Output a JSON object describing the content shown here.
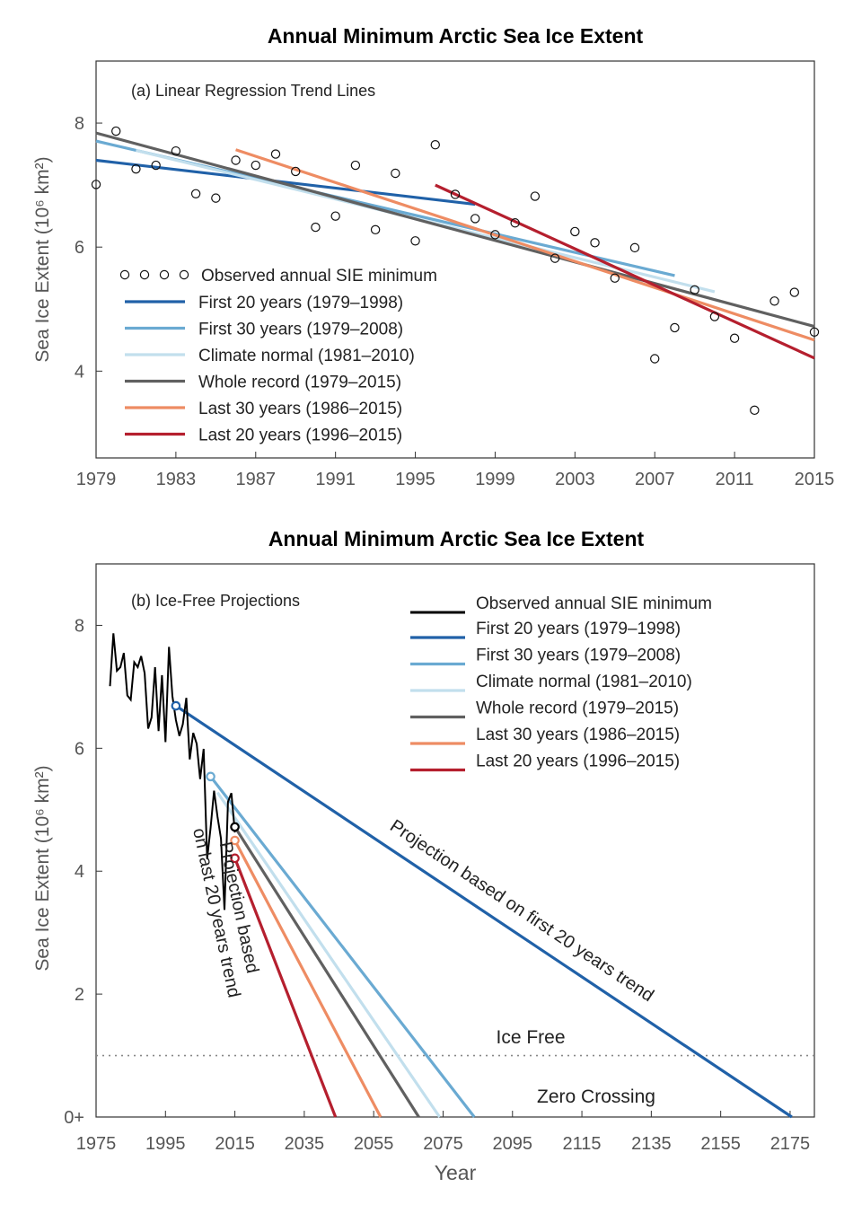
{
  "chart_data": [
    {
      "type": "scatter",
      "title": "Annual Minimum Arctic Sea Ice Extent",
      "subtitle": "(a) Linear Regression Trend Lines",
      "ylabel": "Sea Ice Extent  (10⁶ km²)",
      "xlabel": "",
      "xlim": [
        1979,
        2015
      ],
      "ylim": [
        2.6,
        9.0
      ],
      "xticks": [
        1979,
        1983,
        1987,
        1991,
        1995,
        1999,
        2003,
        2007,
        2011,
        2015
      ],
      "xtick_labels": [
        "1979",
        "1983",
        "1987",
        "1991",
        "1995",
        "1999",
        "2003",
        "2007",
        "2011",
        "2015"
      ],
      "yticks": [
        4,
        6,
        8
      ],
      "ytick_labels": [
        "4",
        "6",
        "8"
      ],
      "legend_position": "bottom-left",
      "observed": {
        "name": "Observed annual SIE minimum",
        "x": [
          1979,
          1980,
          1981,
          1982,
          1983,
          1984,
          1985,
          1986,
          1987,
          1988,
          1989,
          1990,
          1991,
          1992,
          1993,
          1994,
          1995,
          1996,
          1997,
          1998,
          1999,
          2000,
          2001,
          2002,
          2003,
          2004,
          2005,
          2006,
          2007,
          2008,
          2009,
          2010,
          2011,
          2012,
          2013,
          2014,
          2015
        ],
        "y": [
          7.01,
          7.87,
          7.26,
          7.32,
          7.55,
          6.86,
          6.79,
          7.4,
          7.32,
          7.5,
          7.22,
          6.32,
          6.5,
          7.32,
          6.28,
          7.19,
          6.1,
          7.65,
          6.85,
          6.46,
          6.2,
          6.39,
          6.82,
          5.82,
          6.25,
          6.07,
          5.5,
          5.99,
          4.2,
          4.7,
          5.31,
          4.88,
          4.53,
          3.37,
          5.13,
          5.27,
          4.63
        ]
      },
      "series": [
        {
          "name": "First 20 years (1979–1998)",
          "color": "#2061a8",
          "x": [
            1979,
            1998
          ],
          "y": [
            7.4,
            6.69
          ]
        },
        {
          "name": "First 30 years (1979–2008)",
          "color": "#6aaad2",
          "x": [
            1979,
            2008
          ],
          "y": [
            7.71,
            5.54
          ]
        },
        {
          "name": "Climate normal (1981–2010)",
          "color": "#c2dfed",
          "x": [
            1981,
            2010
          ],
          "y": [
            7.56,
            5.28
          ]
        },
        {
          "name": "Whole record (1979–2015)",
          "color": "#606060",
          "x": [
            1979,
            2015
          ],
          "y": [
            7.84,
            4.72
          ]
        },
        {
          "name": "Last 30 years (1986–2015)",
          "color": "#ee8c63",
          "x": [
            1986,
            2015
          ],
          "y": [
            7.57,
            4.5
          ]
        },
        {
          "name": "Last 20 years (1996–2015)",
          "color": "#b51f2e",
          "x": [
            1996,
            2015
          ],
          "y": [
            7.0,
            4.21
          ]
        }
      ]
    },
    {
      "type": "line",
      "title": "Annual Minimum Arctic Sea Ice Extent",
      "subtitle": "(b) Ice-Free Projections",
      "ylabel": "Sea Ice Extent  (10⁶ km²)",
      "xlabel": "Year",
      "xlim": [
        1975,
        2182
      ],
      "ylim": [
        0,
        9.0
      ],
      "xticks": [
        1975,
        1995,
        2015,
        2035,
        2055,
        2075,
        2095,
        2115,
        2135,
        2155,
        2175
      ],
      "xtick_labels": [
        "1975",
        "1995",
        "2015",
        "2035",
        "2055",
        "2075",
        "2095",
        "2115",
        "2135",
        "2155",
        "2175"
      ],
      "yticks": [
        0,
        2,
        4,
        6,
        8
      ],
      "ytick_labels": [
        "0+",
        "2",
        "4",
        "6",
        "8"
      ],
      "legend_position": "top-right",
      "observed_name": "Observed annual SIE minimum",
      "series": [
        {
          "name": "First 20 years (1979–1998)",
          "color": "#2061a8",
          "x": [
            1998,
            2175.5
          ],
          "y": [
            6.69,
            0
          ]
        },
        {
          "name": "First 30 years (1979–2008)",
          "color": "#6aaad2",
          "x": [
            2008,
            2084
          ],
          "y": [
            5.54,
            0
          ]
        },
        {
          "name": "Climate normal (1981–2010)",
          "color": "#c2dfed",
          "x": [
            2010,
            2074
          ],
          "y": [
            5.28,
            0
          ]
        },
        {
          "name": "Whole record (1979–2015)",
          "color": "#606060",
          "x": [
            2015,
            2068
          ],
          "y": [
            4.72,
            0
          ]
        },
        {
          "name": "Last 30 years (1986–2015)",
          "color": "#ee8c63",
          "x": [
            2015,
            2057
          ],
          "y": [
            4.5,
            0
          ]
        },
        {
          "name": "Last 20 years (1996–2015)",
          "color": "#b51f2e",
          "x": [
            2015,
            2044
          ],
          "y": [
            4.21,
            0
          ]
        }
      ],
      "reference_lines": [
        {
          "label": "Ice Free",
          "y": 1.0
        }
      ],
      "annotations": [
        {
          "text": "Zero Crossing"
        },
        {
          "text": "Projection based on first 20 years trend"
        },
        {
          "text_line1": "Projection based",
          "text_line2": "on last 20 years trend"
        }
      ]
    }
  ]
}
